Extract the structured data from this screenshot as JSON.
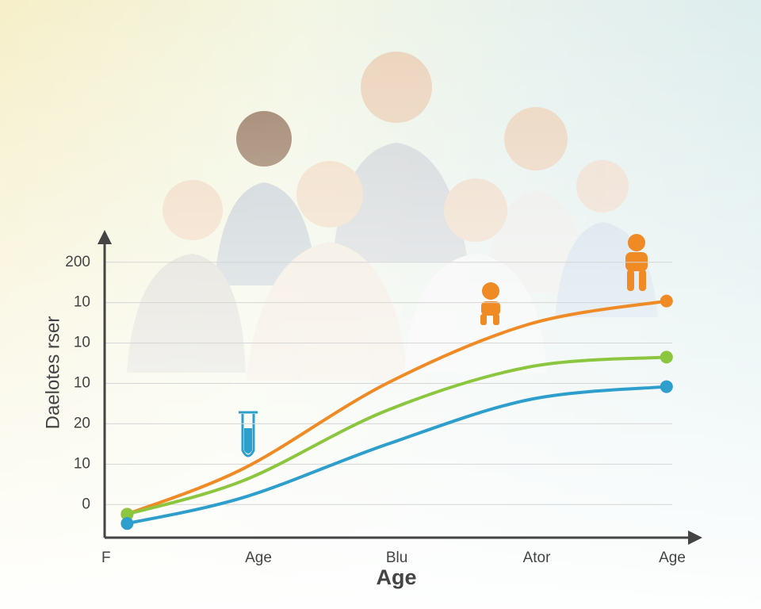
{
  "chart_data": {
    "type": "line",
    "ylabel": "Daelotes rser",
    "xlabel": "Age",
    "xlim": [
      0,
      4.2
    ],
    "xticks": [
      {
        "value": 0,
        "label": "F"
      },
      {
        "value": 1.1,
        "label": "Age"
      },
      {
        "value": 2.07,
        "label": "Blu"
      },
      {
        "value": 3.05,
        "label": "Ator"
      },
      {
        "value": 4,
        "label": "Age"
      }
    ],
    "ylim": [
      -0.82,
      6.8
    ],
    "yticks": [
      0,
      {
        "value": 1,
        "label": "10"
      },
      {
        "value": 2,
        "label": "20"
      },
      {
        "value": 3,
        "label": "10"
      },
      {
        "value": 4,
        "label": "10"
      },
      {
        "value": 5,
        "label": "10"
      },
      {
        "value": 6,
        "label": "200"
      }
    ],
    "grid": true,
    "series": [
      {
        "color": "#f08a24",
        "x": [
          0.18,
          1,
          2,
          3,
          3.96
        ],
        "values": [
          -0.24,
          0.9,
          3.0,
          4.47,
          5.04
        ]
      },
      {
        "color": "#8cc63f",
        "x": [
          0.18,
          1,
          2,
          3,
          3.96
        ],
        "values": [
          -0.24,
          0.6,
          2.33,
          3.41,
          3.65
        ]
      },
      {
        "color": "#2e9fcc",
        "x": [
          0.18,
          1,
          2,
          3,
          3.96
        ],
        "values": [
          -0.47,
          0.18,
          1.49,
          2.6,
          2.92
        ]
      }
    ]
  }
}
